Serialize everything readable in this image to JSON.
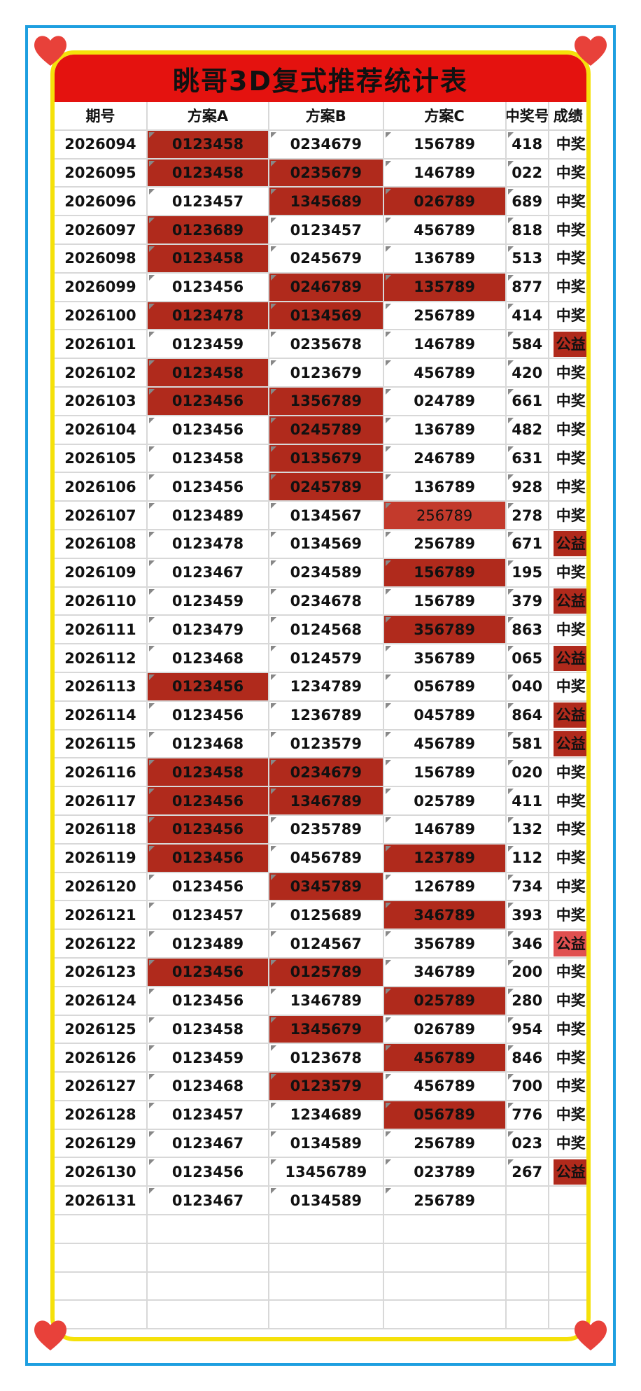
{
  "title": "眺哥3D复式推荐统计表",
  "colors": {
    "frame_blue": "#1e9fe0",
    "frame_yellow": "#f5e10a",
    "banner_red": "#e4120f",
    "highlight": "#b02a1c",
    "heart": "#e8413a"
  },
  "icons": [
    "heart-icon"
  ],
  "headers": [
    "期号",
    "方案A",
    "方案B",
    "方案C",
    "中奖号",
    "成绩"
  ],
  "rows": [
    {
      "period": "2026094",
      "a": "0123458",
      "b": "0234679",
      "c": "156789",
      "win": "418",
      "status": "中奖",
      "hl": [
        1,
        0,
        0
      ],
      "public": false
    },
    {
      "period": "2026095",
      "a": "0123458",
      "b": "0235679",
      "c": "146789",
      "win": "022",
      "status": "中奖",
      "hl": [
        1,
        1,
        0
      ],
      "public": false
    },
    {
      "period": "2026096",
      "a": "0123457",
      "b": "1345689",
      "c": "026789",
      "win": "689",
      "status": "中奖",
      "hl": [
        0,
        1,
        1
      ],
      "public": false
    },
    {
      "period": "2026097",
      "a": "0123689",
      "b": "0123457",
      "c": "456789",
      "win": "818",
      "status": "中奖",
      "hl": [
        1,
        0,
        0
      ],
      "public": false
    },
    {
      "period": "2026098",
      "a": "0123458",
      "b": "0245679",
      "c": "136789",
      "win": "513",
      "status": "中奖",
      "hl": [
        1,
        0,
        0
      ],
      "public": false
    },
    {
      "period": "2026099",
      "a": "0123456",
      "b": "0246789",
      "c": "135789",
      "win": "877",
      "status": "中奖",
      "hl": [
        0,
        1,
        1
      ],
      "public": false
    },
    {
      "period": "2026100",
      "a": "0123478",
      "b": "0134569",
      "c": "256789",
      "win": "414",
      "status": "中奖",
      "hl": [
        1,
        1,
        0
      ],
      "public": false
    },
    {
      "period": "2026101",
      "a": "0123459",
      "b": "0235678",
      "c": "146789",
      "win": "584",
      "status": "公益",
      "hl": [
        0,
        0,
        0
      ],
      "public": true
    },
    {
      "period": "2026102",
      "a": "0123458",
      "b": "0123679",
      "c": "456789",
      "win": "420",
      "status": "中奖",
      "hl": [
        1,
        0,
        0
      ],
      "public": false
    },
    {
      "period": "2026103",
      "a": "0123456",
      "b": "1356789",
      "c": "024789",
      "win": "661",
      "status": "中奖",
      "hl": [
        1,
        1,
        0
      ],
      "public": false
    },
    {
      "period": "2026104",
      "a": "0123456",
      "b": "0245789",
      "c": "136789",
      "win": "482",
      "status": "中奖",
      "hl": [
        0,
        1,
        0
      ],
      "public": false
    },
    {
      "period": "2026105",
      "a": "0123458",
      "b": "0135679",
      "c": "246789",
      "win": "631",
      "status": "中奖",
      "hl": [
        0,
        1,
        0
      ],
      "public": false
    },
    {
      "period": "2026106",
      "a": "0123456",
      "b": "0245789",
      "c": "136789",
      "win": "928",
      "status": "中奖",
      "hl": [
        0,
        1,
        0
      ],
      "public": false
    },
    {
      "period": "2026107",
      "a": "0123489",
      "b": "0134567",
      "c": "256789",
      "win": "278",
      "status": "中奖",
      "hl": [
        0,
        0,
        2
      ],
      "public": false
    },
    {
      "period": "2026108",
      "a": "0123478",
      "b": "0134569",
      "c": "256789",
      "win": "671",
      "status": "公益",
      "hl": [
        0,
        0,
        0
      ],
      "public": true
    },
    {
      "period": "2026109",
      "a": "0123467",
      "b": "0234589",
      "c": "156789",
      "win": "195",
      "status": "中奖",
      "hl": [
        0,
        0,
        1
      ],
      "public": false
    },
    {
      "period": "2026110",
      "a": "0123459",
      "b": "0234678",
      "c": "156789",
      "win": "379",
      "status": "公益",
      "hl": [
        0,
        0,
        0
      ],
      "public": true
    },
    {
      "period": "2026111",
      "a": "0123479",
      "b": "0124568",
      "c": "356789",
      "win": "863",
      "status": "中奖",
      "hl": [
        0,
        0,
        1
      ],
      "public": false
    },
    {
      "period": "2026112",
      "a": "0123468",
      "b": "0124579",
      "c": "356789",
      "win": "065",
      "status": "公益",
      "hl": [
        0,
        0,
        0
      ],
      "public": true
    },
    {
      "period": "2026113",
      "a": "0123456",
      "b": "1234789",
      "c": "056789",
      "win": "040",
      "status": "中奖",
      "hl": [
        1,
        0,
        0
      ],
      "public": false
    },
    {
      "period": "2026114",
      "a": "0123456",
      "b": "1236789",
      "c": "045789",
      "win": "864",
      "status": "公益",
      "hl": [
        0,
        0,
        0
      ],
      "public": true
    },
    {
      "period": "2026115",
      "a": "0123468",
      "b": "0123579",
      "c": "456789",
      "win": "581",
      "status": "公益",
      "hl": [
        0,
        0,
        0
      ],
      "public": true
    },
    {
      "period": "2026116",
      "a": "0123458",
      "b": "0234679",
      "c": "156789",
      "win": "020",
      "status": "中奖",
      "hl": [
        1,
        1,
        0
      ],
      "public": false
    },
    {
      "period": "2026117",
      "a": "0123456",
      "b": "1346789",
      "c": "025789",
      "win": "411",
      "status": "中奖",
      "hl": [
        1,
        1,
        0
      ],
      "public": false
    },
    {
      "period": "2026118",
      "a": "0123456",
      "b": "0235789",
      "c": "146789",
      "win": "132",
      "status": "中奖",
      "hl": [
        1,
        0,
        0
      ],
      "public": false
    },
    {
      "period": "2026119",
      "a": "0123456",
      "b": "0456789",
      "c": "123789",
      "win": "112",
      "status": "中奖",
      "hl": [
        1,
        0,
        1
      ],
      "public": false
    },
    {
      "period": "2026120",
      "a": "0123456",
      "b": "0345789",
      "c": "126789",
      "win": "734",
      "status": "中奖",
      "hl": [
        0,
        1,
        0
      ],
      "public": false
    },
    {
      "period": "2026121",
      "a": "0123457",
      "b": "0125689",
      "c": "346789",
      "win": "393",
      "status": "中奖",
      "hl": [
        0,
        0,
        1
      ],
      "public": false
    },
    {
      "period": "2026122",
      "a": "0123489",
      "b": "0124567",
      "c": "356789",
      "win": "346",
      "status": "公益",
      "hl": [
        0,
        0,
        0
      ],
      "public": true,
      "light": true
    },
    {
      "period": "2026123",
      "a": "0123456",
      "b": "0125789",
      "c": "346789",
      "win": "200",
      "status": "中奖",
      "hl": [
        1,
        1,
        0
      ],
      "public": false
    },
    {
      "period": "2026124",
      "a": "0123456",
      "b": "1346789",
      "c": "025789",
      "win": "280",
      "status": "中奖",
      "hl": [
        0,
        0,
        1
      ],
      "public": false
    },
    {
      "period": "2026125",
      "a": "0123458",
      "b": "1345679",
      "c": "026789",
      "win": "954",
      "status": "中奖",
      "hl": [
        0,
        1,
        0
      ],
      "public": false
    },
    {
      "period": "2026126",
      "a": "0123459",
      "b": "0123678",
      "c": "456789",
      "win": "846",
      "status": "中奖",
      "hl": [
        0,
        0,
        1
      ],
      "public": false
    },
    {
      "period": "2026127",
      "a": "0123468",
      "b": "0123579",
      "c": "456789",
      "win": "700",
      "status": "中奖",
      "hl": [
        0,
        1,
        0
      ],
      "public": false
    },
    {
      "period": "2026128",
      "a": "0123457",
      "b": "1234689",
      "c": "056789",
      "win": "776",
      "status": "中奖",
      "hl": [
        0,
        0,
        1
      ],
      "public": false
    },
    {
      "period": "2026129",
      "a": "0123467",
      "b": "0134589",
      "c": "256789",
      "win": "023",
      "status": "中奖",
      "hl": [
        0,
        0,
        0
      ],
      "public": false
    },
    {
      "period": "2026130",
      "a": "0123456",
      "b": "13456789",
      "c": "023789",
      "win": "267",
      "status": "公益",
      "hl": [
        0,
        0,
        0
      ],
      "public": true
    },
    {
      "period": "2026131",
      "a": "0123467",
      "b": "0134589",
      "c": "256789",
      "win": "",
      "status": "",
      "hl": [
        0,
        0,
        0
      ],
      "public": false
    }
  ],
  "empty_rows": 4
}
